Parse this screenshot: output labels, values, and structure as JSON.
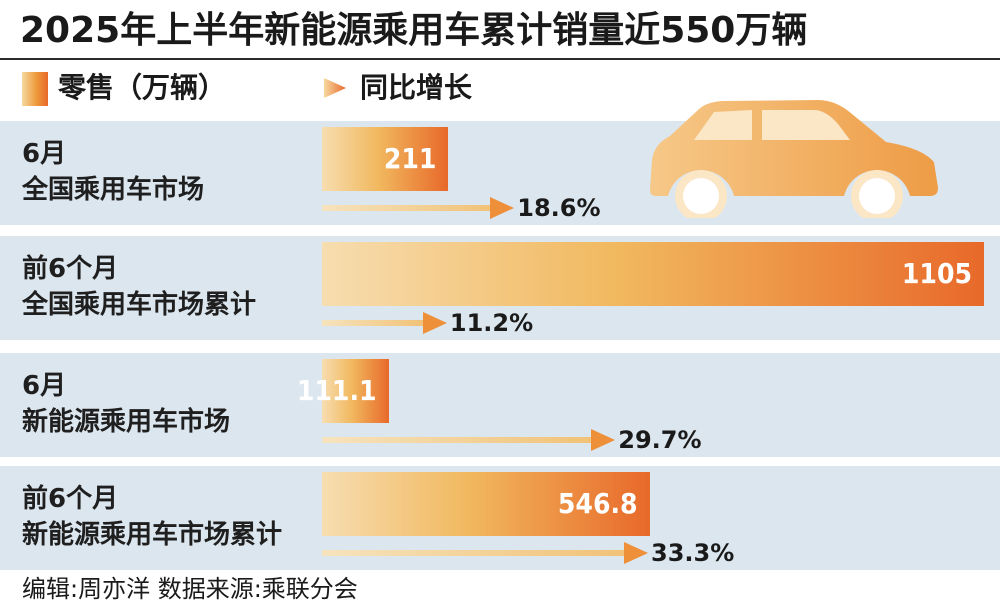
{
  "title": "2025年上半年新能源乘用车累计销量近550万辆",
  "legend": {
    "retail_label": "零售（万辆）",
    "growth_label": "同比增长"
  },
  "chart_data": {
    "type": "bar",
    "title": "2025年上半年新能源乘用车累计销量近550万辆",
    "series": [
      {
        "name": "零售（万辆）",
        "values": [
          211,
          1105,
          111.1,
          546.8
        ]
      },
      {
        "name": "同比增长",
        "values": [
          18.6,
          11.2,
          29.7,
          33.3
        ]
      }
    ],
    "categories": [
      {
        "line1": "6月",
        "line2": "全国乘用车市场"
      },
      {
        "line1": "前6个月",
        "line2": "全国乘用车市场累计"
      },
      {
        "line1": "6月",
        "line2": "新能源乘用车市场"
      },
      {
        "line1": "前6个月",
        "line2": "新能源乘用车市场累计"
      }
    ],
    "bar_labels": [
      "211",
      "1105",
      "111.1",
      "546.8"
    ],
    "growth_labels": [
      "18.6%",
      "11.2%",
      "29.7%",
      "33.3%"
    ]
  },
  "colors": {
    "band": "#dce6ee",
    "bar_start": "#f7ddb0",
    "bar_end": "#e8692a",
    "car": "#f1b35e"
  },
  "footer": "编辑:周亦洋   数据来源:乘联分会"
}
